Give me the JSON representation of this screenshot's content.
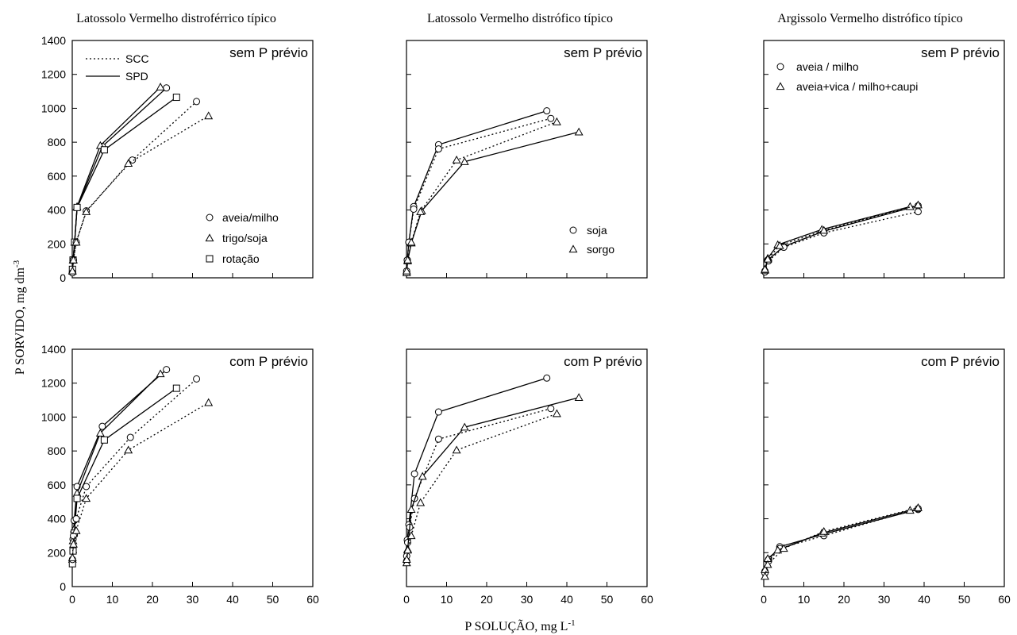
{
  "figure": {
    "ylabel_main": "P SORVIDO, mg dm",
    "ylabel_sup": "-3",
    "xlabel_main": "P SOLUÇÃO, mg L",
    "xlabel_sup": "-1"
  },
  "soil_titles": [
    "Latossolo Vermelho distroférrico típico",
    "Latossolo Vermelho distrófico típico",
    "Argissolo Vermelho distrófico típico"
  ],
  "axes": {
    "xlim": [
      0,
      60
    ],
    "ylim": [
      0,
      1400
    ],
    "xticks": [
      0,
      10,
      20,
      30,
      40,
      50,
      60
    ],
    "yticks": [
      0,
      200,
      400,
      600,
      800,
      1000,
      1200,
      1400
    ]
  },
  "chart_data": [
    {
      "type": "line",
      "soil": "Latossolo Vermelho distroférrico típico",
      "panel_label": "sem P prévio",
      "xlim": [
        0,
        60
      ],
      "ylim": [
        0,
        1400
      ],
      "line_legend": [
        {
          "label": "SCC",
          "style": "dotted"
        },
        {
          "label": "SPD",
          "style": "solid"
        }
      ],
      "marker_legend": [
        {
          "label": "aveia/milho",
          "marker": "circle"
        },
        {
          "label": "trigo/soja",
          "marker": "triangle"
        },
        {
          "label": "rotação",
          "marker": "square"
        }
      ],
      "series": [
        {
          "marker": "circle",
          "style": "solid",
          "x": [
            0.05,
            0.2,
            0.6,
            1.2,
            7.5,
            23.5
          ],
          "y": [
            30,
            105,
            210,
            415,
            775,
            1120
          ]
        },
        {
          "marker": "triangle",
          "style": "solid",
          "x": [
            0.05,
            0.2,
            0.6,
            1.2,
            7.0,
            22.0
          ],
          "y": [
            40,
            105,
            210,
            420,
            780,
            1125
          ]
        },
        {
          "marker": "square",
          "style": "solid",
          "x": [
            0.05,
            0.2,
            0.6,
            1.2,
            8.0,
            26.0
          ],
          "y": [
            50,
            105,
            210,
            415,
            755,
            1065
          ]
        },
        {
          "marker": "circle",
          "style": "dotted",
          "x": [
            0.05,
            0.3,
            1.0,
            3.5,
            15.0,
            31.0
          ],
          "y": [
            30,
            105,
            210,
            395,
            695,
            1040
          ]
        },
        {
          "marker": "triangle",
          "style": "dotted",
          "x": [
            0.05,
            0.3,
            1.0,
            3.5,
            14.0,
            34.0
          ],
          "y": [
            40,
            105,
            210,
            390,
            675,
            955
          ]
        }
      ]
    },
    {
      "type": "line",
      "soil": "Latossolo Vermelho distrófico típico",
      "panel_label": "sem P prévio",
      "xlim": [
        0,
        60
      ],
      "ylim": [
        0,
        1400
      ],
      "marker_legend": [
        {
          "label": "soja",
          "marker": "circle"
        },
        {
          "label": "sorgo",
          "marker": "triangle"
        }
      ],
      "series": [
        {
          "marker": "circle",
          "style": "solid",
          "x": [
            0.05,
            0.2,
            0.6,
            1.8,
            8.0,
            35.0
          ],
          "y": [
            30,
            105,
            210,
            420,
            785,
            985
          ]
        },
        {
          "marker": "circle",
          "style": "dotted",
          "x": [
            0.05,
            0.2,
            0.6,
            1.8,
            8.0,
            36.0
          ],
          "y": [
            40,
            105,
            210,
            405,
            760,
            940
          ]
        },
        {
          "marker": "triangle",
          "style": "solid",
          "x": [
            0.05,
            0.3,
            1.2,
            3.8,
            14.5,
            43.0
          ],
          "y": [
            30,
            100,
            205,
            395,
            685,
            860
          ]
        },
        {
          "marker": "triangle",
          "style": "dotted",
          "x": [
            0.05,
            0.3,
            1.2,
            3.5,
            12.5,
            37.5
          ],
          "y": [
            40,
            105,
            210,
            390,
            695,
            920
          ]
        }
      ]
    },
    {
      "type": "line",
      "soil": "Argissolo Vermelho distrófico típico",
      "panel_label": "sem P prévio",
      "xlim": [
        0,
        60
      ],
      "ylim": [
        0,
        1400
      ],
      "marker_legend": [
        {
          "label": "aveia / milho",
          "marker": "circle"
        },
        {
          "label": "aveia+vica / milho+caupi",
          "marker": "triangle"
        }
      ],
      "series": [
        {
          "marker": "circle",
          "style": "solid",
          "x": [
            0.3,
            1.0,
            5.0,
            15.0,
            38.5
          ],
          "y": [
            40,
            105,
            185,
            275,
            425
          ]
        },
        {
          "marker": "circle",
          "style": "dotted",
          "x": [
            0.3,
            1.2,
            5.0,
            15.0,
            38.5
          ],
          "y": [
            35,
            100,
            180,
            265,
            390
          ]
        },
        {
          "marker": "triangle",
          "style": "solid",
          "x": [
            0.3,
            1.0,
            3.5,
            14.5,
            36.5
          ],
          "y": [
            45,
            115,
            195,
            285,
            420
          ]
        },
        {
          "marker": "triangle",
          "style": "dotted",
          "x": [
            0.3,
            1.0,
            4.0,
            15.0,
            38.5
          ],
          "y": [
            50,
            110,
            190,
            280,
            430
          ]
        }
      ]
    },
    {
      "type": "line",
      "soil": "Latossolo Vermelho distroférrico típico",
      "panel_label": "com P prévio",
      "xlim": [
        0,
        60
      ],
      "ylim": [
        0,
        1400
      ],
      "series": [
        {
          "marker": "circle",
          "style": "solid",
          "x": [
            0.05,
            0.2,
            0.5,
            1.2,
            7.5,
            23.5
          ],
          "y": [
            150,
            280,
            390,
            590,
            945,
            1280
          ]
        },
        {
          "marker": "triangle",
          "style": "solid",
          "x": [
            0.05,
            0.2,
            0.5,
            1.2,
            7.0,
            22.0
          ],
          "y": [
            160,
            270,
            340,
            550,
            905,
            1255
          ]
        },
        {
          "marker": "square",
          "style": "solid",
          "x": [
            0.05,
            0.2,
            0.5,
            1.2,
            8.0,
            26.0
          ],
          "y": [
            135,
            210,
            315,
            520,
            865,
            1170
          ]
        },
        {
          "marker": "circle",
          "style": "dotted",
          "x": [
            0.05,
            0.3,
            1.0,
            3.5,
            14.5,
            31.0
          ],
          "y": [
            160,
            300,
            400,
            590,
            880,
            1225
          ]
        },
        {
          "marker": "triangle",
          "style": "dotted",
          "x": [
            0.05,
            0.3,
            1.0,
            3.5,
            14.0,
            34.0
          ],
          "y": [
            170,
            250,
            330,
            520,
            805,
            1085
          ]
        }
      ]
    },
    {
      "type": "line",
      "soil": "Latossolo Vermelho distrófico típico",
      "panel_label": "com P prévio",
      "xlim": [
        0,
        60
      ],
      "ylim": [
        0,
        1400
      ],
      "series": [
        {
          "marker": "circle",
          "style": "solid",
          "x": [
            0.05,
            0.2,
            0.6,
            2.0,
            8.0,
            35.0
          ],
          "y": [
            180,
            275,
            365,
            665,
            1030,
            1230
          ]
        },
        {
          "marker": "circle",
          "style": "dotted",
          "x": [
            0.05,
            0.3,
            0.8,
            2.0,
            8.0,
            36.0
          ],
          "y": [
            150,
            260,
            350,
            520,
            870,
            1050
          ]
        },
        {
          "marker": "triangle",
          "style": "solid",
          "x": [
            0.05,
            0.3,
            1.2,
            4.0,
            14.5,
            43.0
          ],
          "y": [
            140,
            220,
            455,
            650,
            940,
            1115
          ]
        },
        {
          "marker": "triangle",
          "style": "dotted",
          "x": [
            0.05,
            0.3,
            1.2,
            3.5,
            12.5,
            37.5
          ],
          "y": [
            160,
            215,
            300,
            495,
            805,
            1020
          ]
        }
      ]
    },
    {
      "type": "line",
      "soil": "Argissolo Vermelho distrófico típico",
      "panel_label": "com P prévio",
      "xlim": [
        0,
        60
      ],
      "ylim": [
        0,
        1400
      ],
      "series": [
        {
          "marker": "circle",
          "style": "solid",
          "x": [
            0.3,
            1.2,
            4.0,
            15.0,
            38.5
          ],
          "y": [
            90,
            160,
            235,
            310,
            455
          ]
        },
        {
          "marker": "circle",
          "style": "dotted",
          "x": [
            0.3,
            1.2,
            4.0,
            15.0,
            38.5
          ],
          "y": [
            80,
            150,
            225,
            300,
            460
          ]
        },
        {
          "marker": "triangle",
          "style": "solid",
          "x": [
            0.3,
            1.0,
            3.5,
            14.5,
            36.5
          ],
          "y": [
            100,
            165,
            215,
            315,
            450
          ]
        },
        {
          "marker": "triangle",
          "style": "dotted",
          "x": [
            0.3,
            1.0,
            5.0,
            15.0,
            38.5
          ],
          "y": [
            60,
            130,
            225,
            325,
            465
          ]
        }
      ]
    }
  ]
}
